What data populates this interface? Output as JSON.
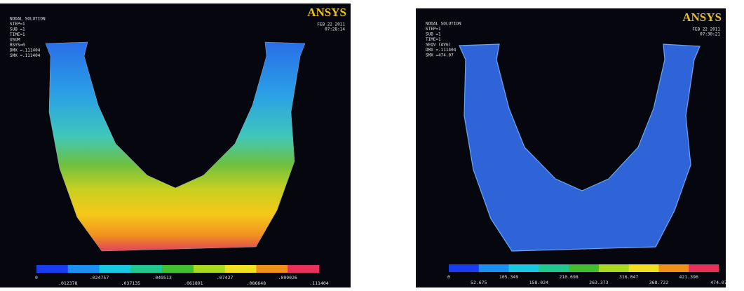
{
  "panels": [
    {
      "logo": "ANSYS",
      "header": [
        "NODAL SOLUTION",
        "STEP=1",
        "SUB =1",
        "TIME=1",
        "USUM",
        "RSYS=0",
        "DMX =.111404",
        "SMX =.111404"
      ],
      "date": [
        "FEB 22 2011",
        "07:28:14"
      ],
      "legend": [
        "0",
        ".012378",
        ".024757",
        ".037135",
        ".049513",
        ".061891",
        ".07427",
        ".086648",
        ".099026",
        ".111404"
      ]
    },
    {
      "logo": "ANSYS",
      "header": [
        "NODAL SOLUTION",
        "STEP=1",
        "SUB =1",
        "TIME=1",
        "SEQV (AVG)",
        "DMX =.111404",
        "SMX =474.07"
      ],
      "date": [
        "FEB 22 2011",
        "07:30:21"
      ],
      "legend": [
        "0",
        "52.675",
        "105.349",
        "158.024",
        "210.698",
        "263.373",
        "316.047",
        "368.722",
        "421.396",
        "474.07"
      ]
    }
  ]
}
